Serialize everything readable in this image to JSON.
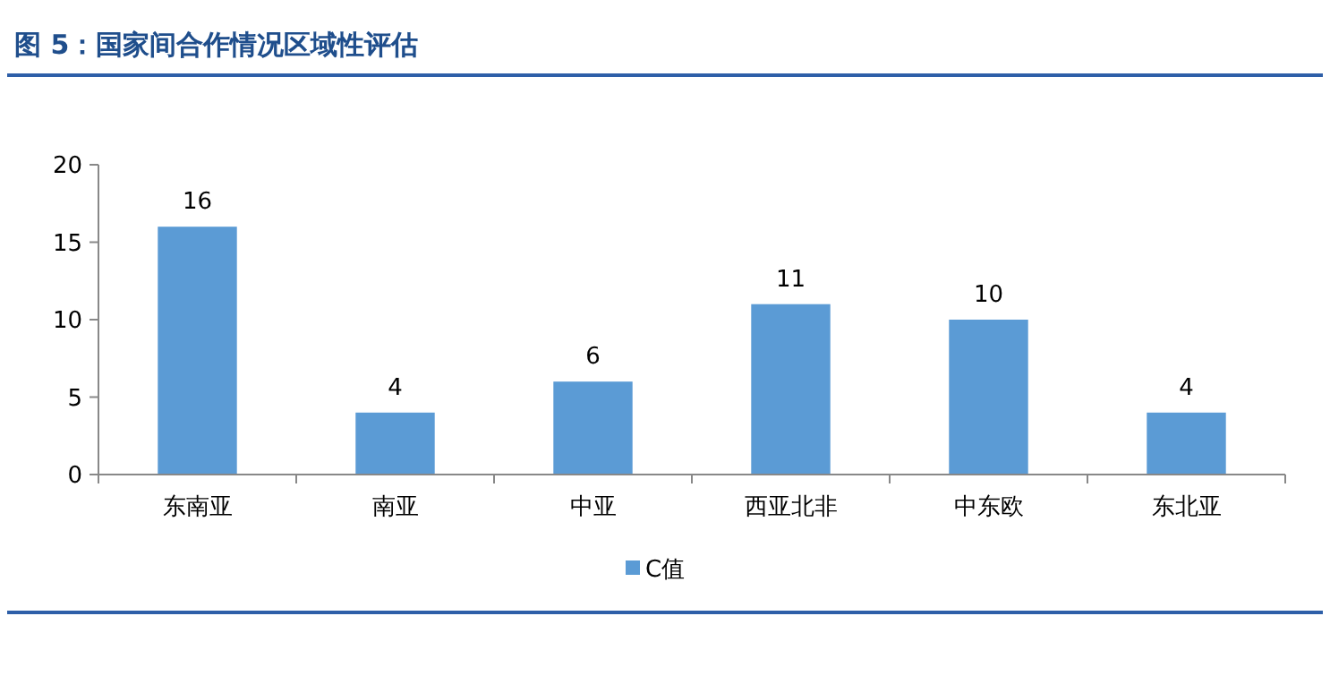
{
  "chart_data": {
    "type": "bar",
    "title": "图 5：国家间合作情况区域性评估",
    "categories": [
      "东南亚",
      "南亚",
      "中亚",
      "西亚北非",
      "中东欧",
      "东北亚"
    ],
    "series": [
      {
        "name": "C值",
        "color": "#5b9bd5",
        "values": [
          16,
          4,
          6,
          11,
          10,
          4
        ]
      }
    ],
    "ylim": [
      0,
      20
    ],
    "yticks": [
      0,
      5,
      10,
      15,
      20
    ],
    "data_labels": true,
    "legend": "bottom",
    "grid": false
  }
}
